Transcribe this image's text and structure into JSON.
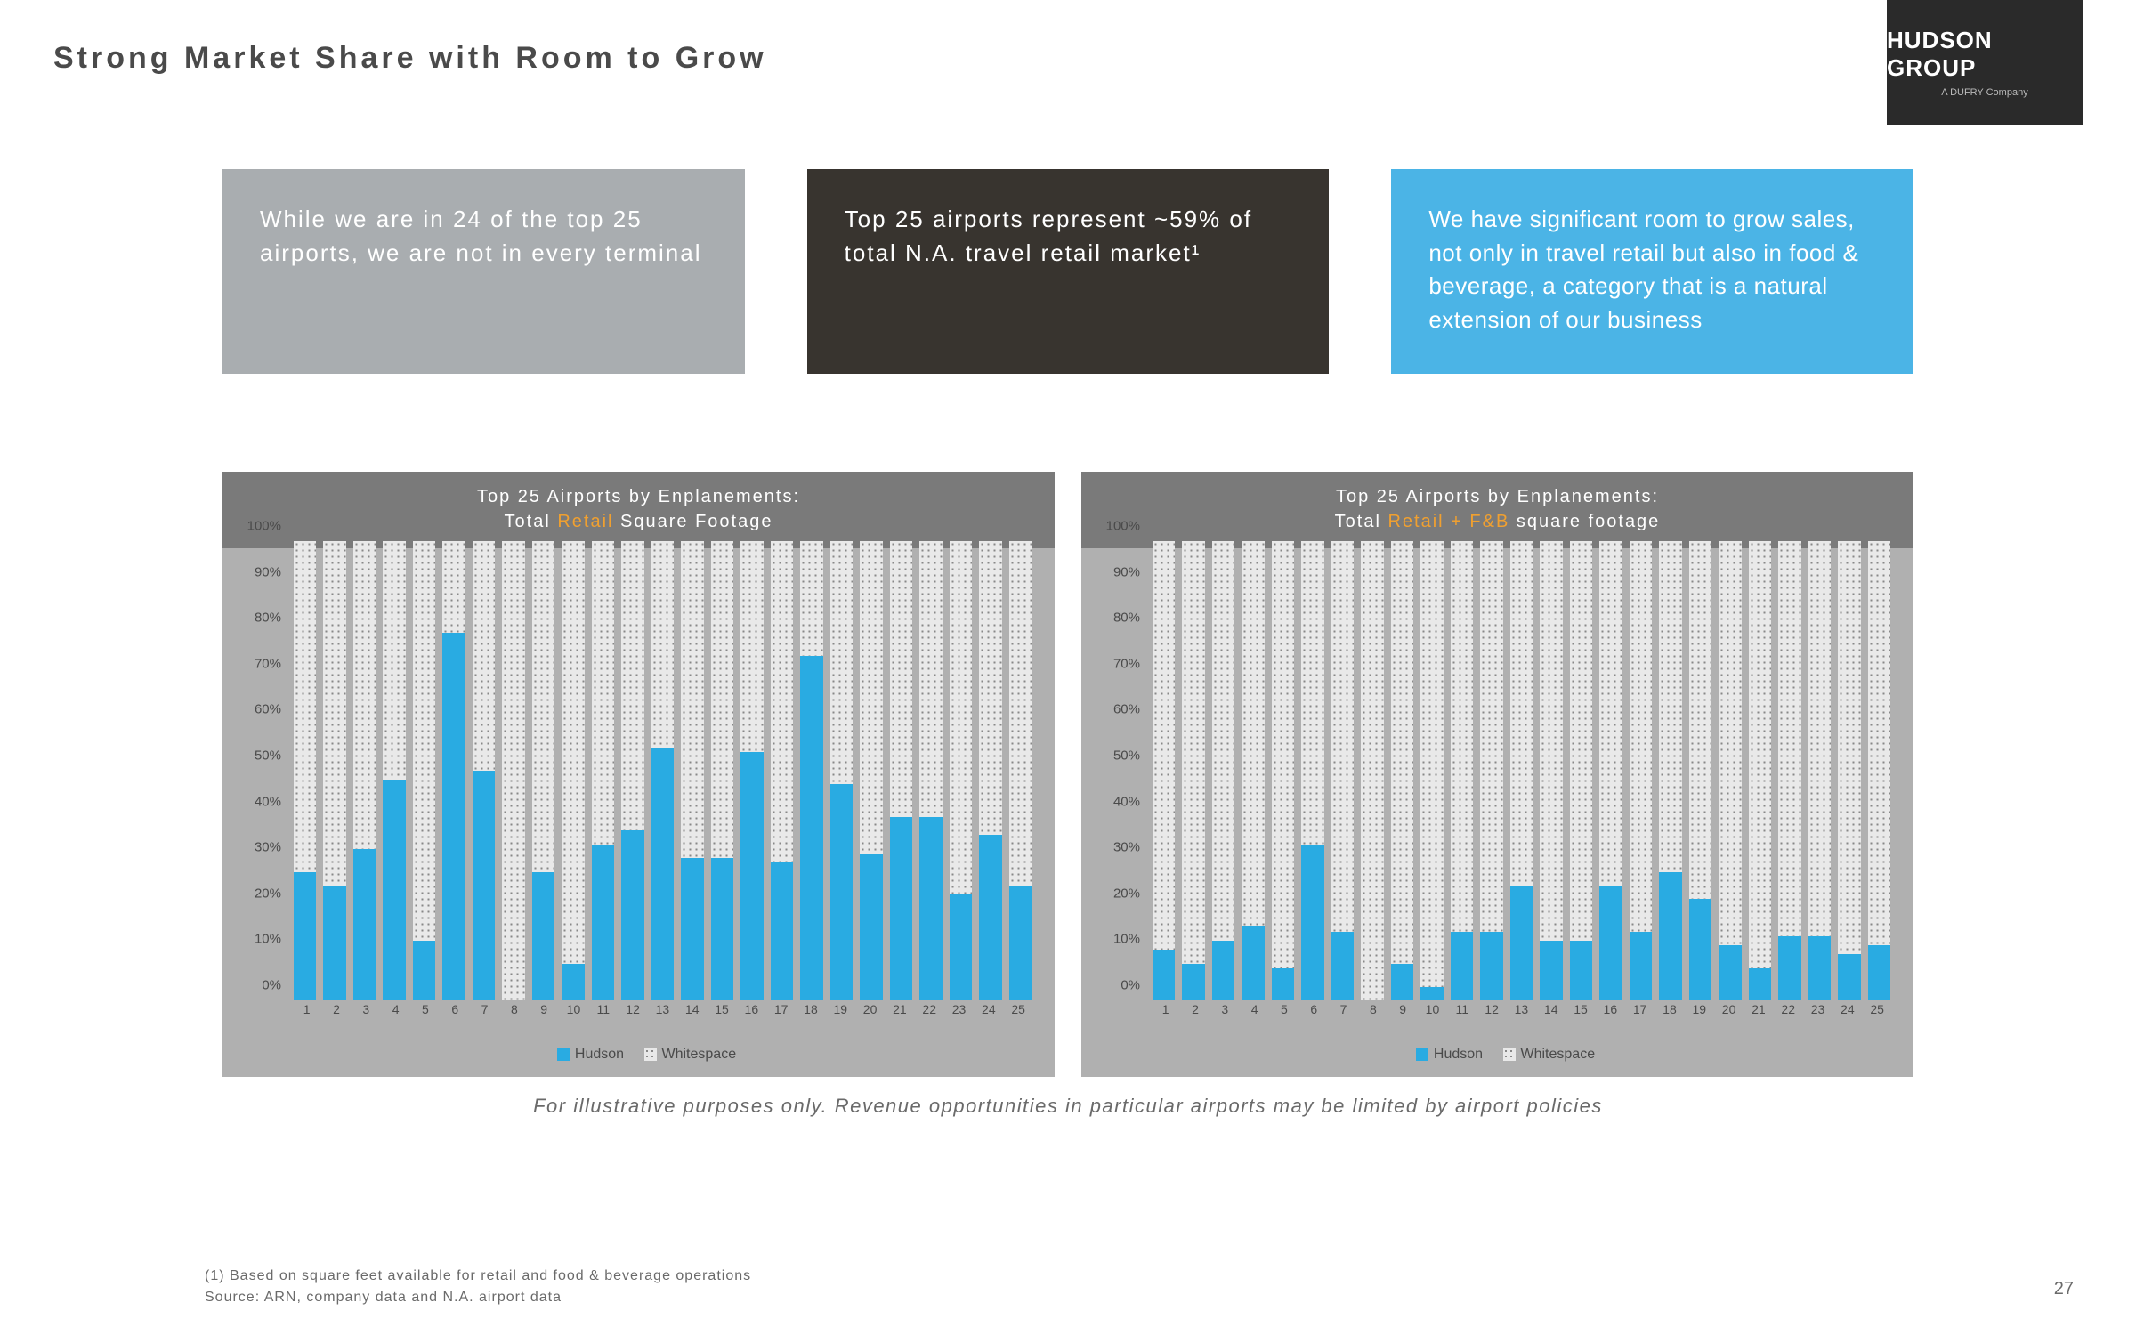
{
  "title": "Strong Market Share with Room to Grow",
  "logo": {
    "main": "HUDSON GROUP",
    "sub": "A DUFRY Company"
  },
  "callouts": {
    "a": "While we are in 24 of the top 25 airports, we are not in every terminal",
    "b": "Top 25 airports represent ~59% of total N.A. travel retail market¹",
    "c": "We have significant room to grow sales, not only in travel retail but also in food & beverage, a category that is a natural extension of our business"
  },
  "colors": {
    "hudson_bar": "#29abe2",
    "callout_gray": "#a9adb0",
    "callout_dark": "#38342f",
    "callout_blue": "#4bb4e6",
    "accent_orange": "#f0a030"
  },
  "y_ticks": [
    "0%",
    "10%",
    "20%",
    "30%",
    "40%",
    "50%",
    "60%",
    "70%",
    "80%",
    "90%",
    "100%"
  ],
  "x_categories": [
    "1",
    "2",
    "3",
    "4",
    "5",
    "6",
    "7",
    "8",
    "9",
    "10",
    "11",
    "12",
    "13",
    "14",
    "15",
    "16",
    "17",
    "18",
    "19",
    "20",
    "21",
    "22",
    "23",
    "24",
    "25"
  ],
  "charts": {
    "left": {
      "title_pre": "Top 25 Airports by Enplanements:",
      "title_line2_a": "Total ",
      "title_line2_accent": "Retail",
      "title_line2_b": " Square Footage",
      "hudson_pct": [
        28,
        25,
        33,
        48,
        13,
        80,
        50,
        0,
        28,
        8,
        34,
        37,
        55,
        31,
        31,
        54,
        30,
        75,
        47,
        32,
        40,
        40,
        23,
        36,
        25
      ]
    },
    "right": {
      "title_pre": "Top 25 Airports by Enplanements:",
      "title_line2_a": "Total ",
      "title_line2_accent": "Retail + F&B",
      "title_line2_b": " square footage",
      "hudson_pct": [
        11,
        8,
        13,
        16,
        7,
        34,
        15,
        0,
        8,
        3,
        15,
        15,
        25,
        13,
        13,
        25,
        15,
        28,
        22,
        12,
        7,
        14,
        14,
        10,
        12
      ]
    }
  },
  "legend": {
    "hudson": "Hudson",
    "whitespace": "Whitespace"
  },
  "footnote_italic": "For illustrative purposes only.  Revenue opportunities in particular airports may be limited by airport policies",
  "footnote1": "(1) Based on square feet available for retail and food & beverage operations",
  "footnote2": "Source: ARN, company data and N.A. airport data",
  "page_number": "27"
}
